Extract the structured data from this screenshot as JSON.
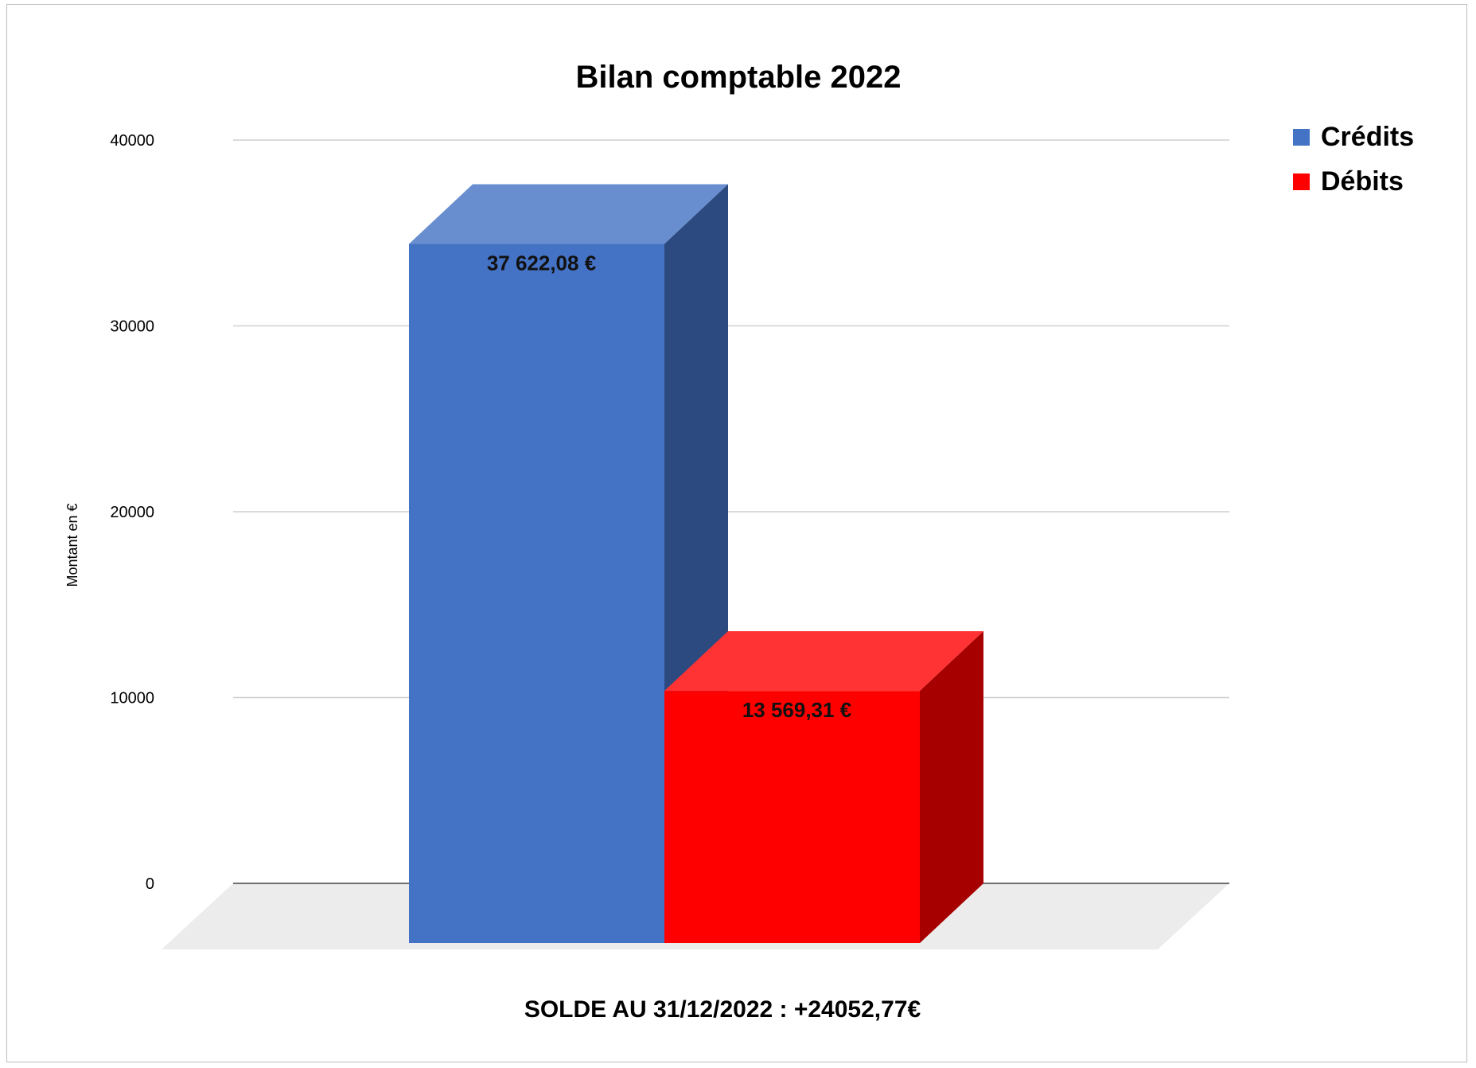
{
  "chart_data": {
    "type": "bar",
    "title": "Bilan comptable 2022",
    "ylabel": "Montant en €",
    "xlabel": "",
    "ylim": [
      0,
      40000
    ],
    "yticks": [
      0,
      10000,
      20000,
      30000,
      40000
    ],
    "y_tick_labels": [
      "0",
      "10000",
      "20000",
      "30000",
      "40000"
    ],
    "grid": true,
    "style": "3d",
    "legend_position": "top-right",
    "series": [
      {
        "name": "Crédits",
        "values": [
          37622.08
        ],
        "data_label": "37 622,08  €",
        "color": "#4472C4"
      },
      {
        "name": "Débits",
        "values": [
          13569.31
        ],
        "data_label": "13 569,31  €",
        "color": "#FF0000"
      }
    ],
    "annotation": "SOLDE AU 31/12/2022 : +24052,77€"
  }
}
